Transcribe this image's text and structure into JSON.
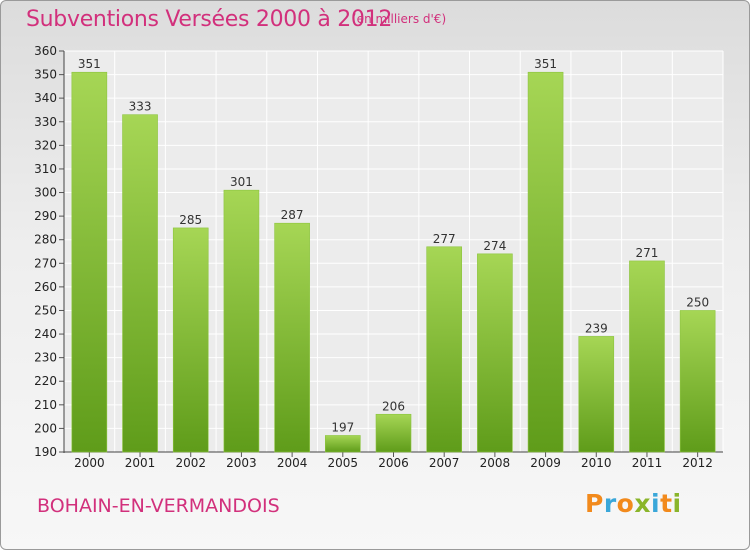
{
  "header": {
    "title": "Subventions Versées 2000 à 2012",
    "unit": "(en milliers d'€)"
  },
  "footer": {
    "commune": "BOHAIN-EN-VERMANDOIS",
    "brand": "Proxiti"
  },
  "colors": {
    "title": "#d2307c",
    "bar_light": "#a6d655",
    "bar_dark": "#5f9c1a",
    "brand_letters": [
      "#f28a1c",
      "#3aa7d9",
      "#f28a1c",
      "#8ab52a",
      "#3aa7d9",
      "#f28a1c",
      "#8ab52a"
    ]
  },
  "chart_data": {
    "type": "bar",
    "categories": [
      "2000",
      "2001",
      "2002",
      "2003",
      "2004",
      "2005",
      "2006",
      "2007",
      "2008",
      "2009",
      "2010",
      "2011",
      "2012"
    ],
    "values": [
      351,
      333,
      285,
      301,
      287,
      197,
      206,
      277,
      274,
      351,
      239,
      271,
      250
    ],
    "ylim": [
      190,
      360
    ],
    "yticks": [
      190,
      200,
      210,
      220,
      230,
      240,
      250,
      260,
      270,
      280,
      290,
      300,
      310,
      320,
      330,
      340,
      350,
      360
    ],
    "grid": true,
    "legend": "none"
  }
}
